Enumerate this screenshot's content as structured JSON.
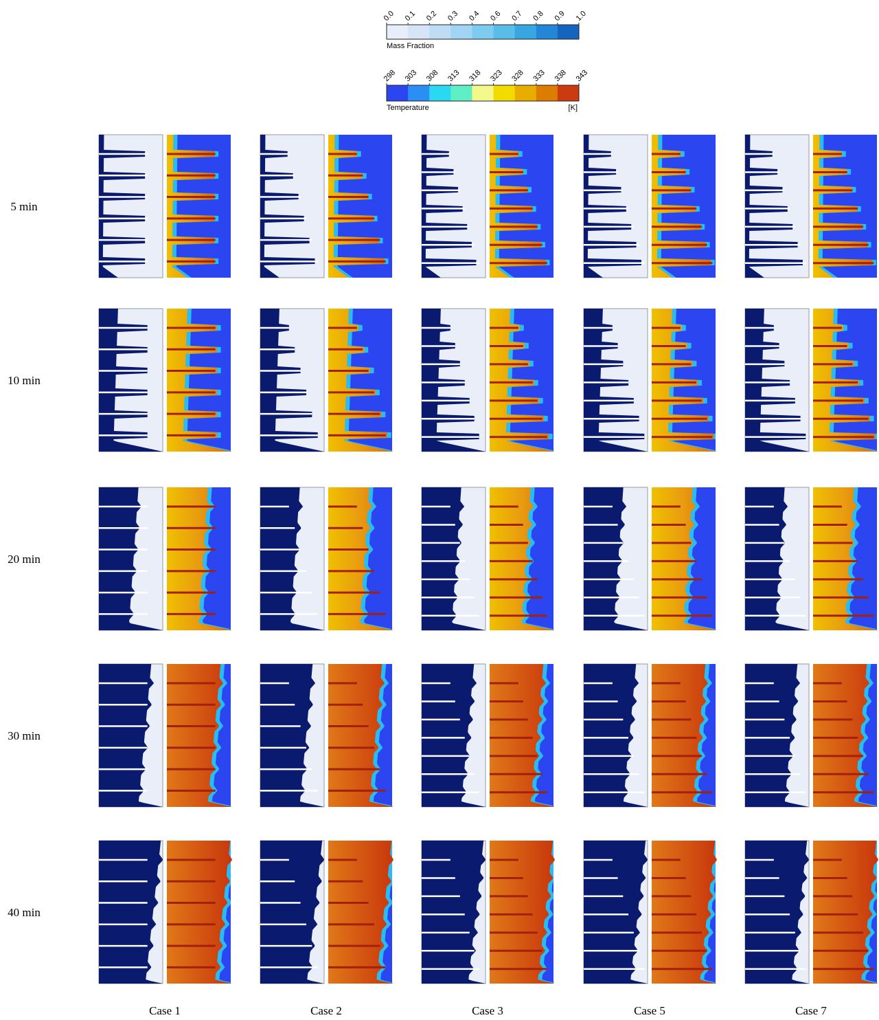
{
  "colorbars": [
    {
      "title": "Mass Fraction",
      "ticks": [
        "0.0",
        "0.1",
        "0.2",
        "0.3",
        "0.4",
        "0.6",
        "0.7",
        "0.8",
        "0.9",
        "1.0"
      ]
    },
    {
      "title": "Temperature",
      "unit": "[K]",
      "ticks": [
        298,
        303,
        308,
        313,
        318,
        323,
        328,
        333,
        338,
        343
      ]
    }
  ],
  "rows": [
    "5 min",
    "10 min",
    "20 min",
    "30 min",
    "40 min"
  ],
  "cases": [
    "Case 1",
    "Case 2",
    "Case 3",
    "Case 5",
    "Case 7"
  ]
}
